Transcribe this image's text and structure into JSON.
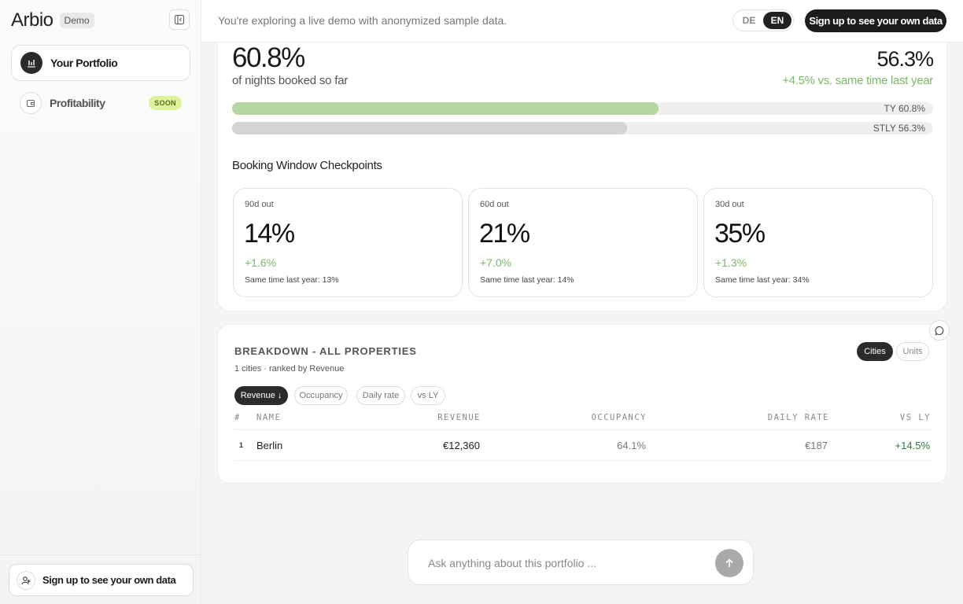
{
  "sidebar": {
    "brand": "Arbio",
    "badge": "Demo",
    "items": [
      {
        "label": "Your Portfolio"
      },
      {
        "label": "Profitability",
        "badge": "SOON"
      }
    ],
    "signup_label": "Sign up to see your own data"
  },
  "topbar": {
    "notice": "You're exploring a live demo with anonymized sample data.",
    "lang": [
      "DE",
      "EN"
    ],
    "lang_selected": "EN",
    "cta": "Sign up to see your own data"
  },
  "occupancy": {
    "value": "60.8%",
    "subtitle": "of nights booked so far",
    "ly_value": "56.3%",
    "ly_delta": "+4.5% vs. same time last year",
    "bars": [
      {
        "label": "TY 60.8%",
        "fraction": 0.608,
        "color": "#b5d69f"
      },
      {
        "label": "STLY 56.3%",
        "fraction": 0.563,
        "color": "#d4d4d3"
      }
    ]
  },
  "checkpoints": {
    "title": "Booking Window Checkpoints",
    "items": [
      {
        "label": "90d out",
        "value": "14%",
        "delta": "+1.6%",
        "ly": "Same time last year: 13%"
      },
      {
        "label": "60d out",
        "value": "21%",
        "delta": "+7.0%",
        "ly": "Same time last year: 14%"
      },
      {
        "label": "30d out",
        "value": "35%",
        "delta": "+1.3%",
        "ly": "Same time last year: 34%"
      }
    ]
  },
  "breakdown": {
    "title": "BREAKDOWN - ALL PROPERTIES",
    "subtitle": "1 cities · ranked by Revenue",
    "toggle": [
      "Cities",
      "Units"
    ],
    "toggle_selected": "Cities",
    "sort_chips": [
      "Revenue ↓",
      "Occupancy",
      "Daily rate",
      "vs LY"
    ],
    "sort_selected": "Revenue ↓",
    "columns": [
      "#",
      "NAME",
      "REVENUE",
      "OCCUPANCY",
      "DAILY RATE",
      "VS LY"
    ],
    "rows": [
      {
        "rank": "1",
        "name": "Berlin",
        "revenue": "€12,360",
        "occupancy": "64.1%",
        "daily_rate": "€187",
        "vs_ly": "+14.5%"
      }
    ]
  },
  "chat": {
    "placeholder": "Ask anything about this portfolio ..."
  },
  "colors": {
    "accent_green": "#7cb86a",
    "positive_dark_green": "#2d7a3c",
    "soon_badge": "#def29a",
    "cta_dark": "#1c1c1c"
  }
}
